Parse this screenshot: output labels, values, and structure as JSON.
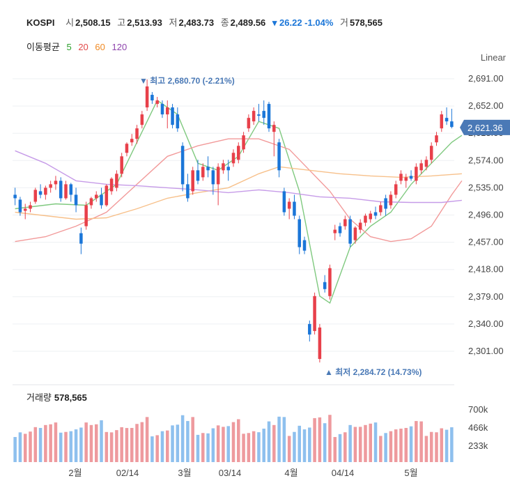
{
  "header": {
    "symbol": "KOSPI",
    "open_label": "시",
    "open": "2,508.15",
    "high_label": "고",
    "high": "2,513.93",
    "low_label": "저",
    "low": "2,483.73",
    "close_label": "종",
    "close": "2,489.56",
    "change": "▾ 26.22 -1.04%",
    "volume_label": "거",
    "volume": "578,565"
  },
  "ma_legend": {
    "label": "이동평균",
    "items": [
      {
        "text": "5",
        "color": "#2ca02c"
      },
      {
        "text": "20",
        "color": "#e24a4a"
      },
      {
        "text": "60",
        "color": "#f08a24"
      },
      {
        "text": "120",
        "color": "#8e44ad"
      }
    ]
  },
  "scale_label": "Linear",
  "current_price": "2,621.36",
  "max_note": "▼ 최고 2,680.70 (-2.21%)",
  "min_note": "▲ 최저 2,284.72 (14.73%)",
  "volume_panel": {
    "label": "거래량",
    "value": "578,565"
  },
  "colors": {
    "up": "#e8404a",
    "down": "#1b76d8",
    "vol_up": "#ee9a9e",
    "vol_down": "#8ec0ee",
    "badge": "#4a79b6"
  },
  "chart_data": {
    "type": "candlestick",
    "y_ticks": [
      "2,691.00",
      "2,652.00",
      "2,613.00",
      "2,574.00",
      "2,535.00",
      "2,496.00",
      "2,457.00",
      "2,418.00",
      "2,379.00",
      "2,340.00",
      "2,301.00"
    ],
    "x_ticks": [
      "2월",
      "02/14",
      "3월",
      "03/14",
      "4월",
      "04/14",
      "5월"
    ],
    "ylim": [
      2301,
      2691
    ],
    "volume_ticks": [
      "700k",
      "466k",
      "233k"
    ],
    "candles": [
      [
        2525,
        2535,
        2510,
        2520
      ],
      [
        2518,
        2522,
        2495,
        2500
      ],
      [
        2502,
        2512,
        2490,
        2505
      ],
      [
        2505,
        2515,
        2500,
        2510
      ],
      [
        2515,
        2535,
        2512,
        2532
      ],
      [
        2530,
        2540,
        2520,
        2525
      ],
      [
        2525,
        2538,
        2518,
        2535
      ],
      [
        2535,
        2545,
        2528,
        2540
      ],
      [
        2540,
        2552,
        2532,
        2545
      ],
      [
        2545,
        2550,
        2515,
        2520
      ],
      [
        2520,
        2545,
        2518,
        2540
      ],
      [
        2540,
        2542,
        2515,
        2525
      ],
      [
        2525,
        2535,
        2500,
        2510
      ],
      [
        2470,
        2478,
        2440,
        2455
      ],
      [
        2480,
        2515,
        2475,
        2510
      ],
      [
        2510,
        2522,
        2505,
        2520
      ],
      [
        2520,
        2530,
        2515,
        2525
      ],
      [
        2525,
        2535,
        2505,
        2510
      ],
      [
        2510,
        2540,
        2508,
        2538
      ],
      [
        2530,
        2550,
        2525,
        2548
      ],
      [
        2535,
        2560,
        2530,
        2555
      ],
      [
        2555,
        2585,
        2550,
        2580
      ],
      [
        2585,
        2600,
        2580,
        2598
      ],
      [
        2600,
        2612,
        2595,
        2605
      ],
      [
        2605,
        2625,
        2598,
        2620
      ],
      [
        2625,
        2645,
        2620,
        2640
      ],
      [
        2650,
        2690,
        2645,
        2680
      ],
      [
        2668,
        2672,
        2655,
        2660
      ],
      [
        2655,
        2665,
        2650,
        2660
      ],
      [
        2655,
        2660,
        2635,
        2640
      ],
      [
        2640,
        2660,
        2620,
        2650
      ],
      [
        2650,
        2655,
        2620,
        2625
      ],
      [
        2640,
        2650,
        2615,
        2620
      ],
      [
        2595,
        2600,
        2530,
        2540
      ],
      [
        2540,
        2555,
        2515,
        2520
      ],
      [
        2530,
        2565,
        2525,
        2560
      ],
      [
        2560,
        2575,
        2540,
        2545
      ],
      [
        2550,
        2570,
        2545,
        2565
      ],
      [
        2565,
        2580,
        2550,
        2560
      ],
      [
        2560,
        2565,
        2525,
        2540
      ],
      [
        2540,
        2570,
        2510,
        2565
      ],
      [
        2560,
        2575,
        2555,
        2570
      ],
      [
        2565,
        2575,
        2545,
        2560
      ],
      [
        2570,
        2590,
        2565,
        2585
      ],
      [
        2575,
        2600,
        2570,
        2595
      ],
      [
        2590,
        2615,
        2585,
        2610
      ],
      [
        2620,
        2640,
        2615,
        2635
      ],
      [
        2630,
        2650,
        2625,
        2645
      ],
      [
        2640,
        2655,
        2630,
        2638
      ],
      [
        2645,
        2660,
        2625,
        2635
      ],
      [
        2655,
        2658,
        2615,
        2620
      ],
      [
        2615,
        2630,
        2580,
        2625
      ],
      [
        2600,
        2605,
        2550,
        2560
      ],
      [
        2530,
        2535,
        2495,
        2500
      ],
      [
        2505,
        2520,
        2490,
        2515
      ],
      [
        2515,
        2525,
        2490,
        2495
      ],
      [
        2490,
        2495,
        2440,
        2450
      ],
      [
        2460,
        2465,
        2440,
        2445
      ],
      [
        2340,
        2345,
        2315,
        2325
      ],
      [
        2330,
        2385,
        2325,
        2380
      ],
      [
        2290,
        2340,
        2285,
        2335
      ],
      [
        2400,
        2410,
        2385,
        2390
      ],
      [
        2380,
        2425,
        2375,
        2420
      ],
      [
        2470,
        2482,
        2460,
        2475
      ],
      [
        2480,
        2485,
        2465,
        2470
      ],
      [
        2480,
        2495,
        2475,
        2490
      ],
      [
        2490,
        2495,
        2450,
        2455
      ],
      [
        2460,
        2480,
        2455,
        2478
      ],
      [
        2475,
        2490,
        2470,
        2485
      ],
      [
        2485,
        2498,
        2480,
        2495
      ],
      [
        2490,
        2502,
        2485,
        2498
      ],
      [
        2500,
        2508,
        2490,
        2495
      ],
      [
        2500,
        2515,
        2495,
        2510
      ],
      [
        2520,
        2525,
        2495,
        2505
      ],
      [
        2510,
        2530,
        2505,
        2525
      ],
      [
        2525,
        2545,
        2520,
        2540
      ],
      [
        2545,
        2560,
        2540,
        2555
      ],
      [
        2545,
        2555,
        2535,
        2550
      ],
      [
        2552,
        2560,
        2545,
        2548
      ],
      [
        2545,
        2570,
        2540,
        2565
      ],
      [
        2560,
        2575,
        2555,
        2570
      ],
      [
        2565,
        2580,
        2560,
        2575
      ],
      [
        2575,
        2600,
        2570,
        2595
      ],
      [
        2600,
        2615,
        2595,
        2610
      ],
      [
        2620,
        2645,
        2615,
        2640
      ],
      [
        2635,
        2650,
        2625,
        2630
      ],
      [
        2630,
        2648,
        2620,
        2622
      ]
    ],
    "ma_series": {
      "ma5": [
        [
          0,
          2505
        ],
        [
          8,
          2512
        ],
        [
          14,
          2510
        ],
        [
          20,
          2540
        ],
        [
          26,
          2630
        ],
        [
          28,
          2660
        ],
        [
          32,
          2640
        ],
        [
          36,
          2570
        ],
        [
          40,
          2560
        ],
        [
          44,
          2580
        ],
        [
          48,
          2630
        ],
        [
          52,
          2620
        ],
        [
          56,
          2530
        ],
        [
          60,
          2380
        ],
        [
          62,
          2370
        ],
        [
          66,
          2450
        ],
        [
          70,
          2480
        ],
        [
          74,
          2500
        ],
        [
          78,
          2540
        ],
        [
          82,
          2570
        ],
        [
          86,
          2600
        ],
        [
          88,
          2610
        ]
      ],
      "ma20": [
        [
          0,
          2458
        ],
        [
          6,
          2465
        ],
        [
          12,
          2480
        ],
        [
          18,
          2500
        ],
        [
          24,
          2540
        ],
        [
          30,
          2580
        ],
        [
          36,
          2595
        ],
        [
          42,
          2605
        ],
        [
          48,
          2605
        ],
        [
          54,
          2590
        ],
        [
          58,
          2560
        ],
        [
          62,
          2530
        ],
        [
          66,
          2490
        ],
        [
          70,
          2465
        ],
        [
          74,
          2458
        ],
        [
          78,
          2462
        ],
        [
          82,
          2480
        ],
        [
          86,
          2525
        ],
        [
          88,
          2545
        ]
      ],
      "ma60": [
        [
          0,
          2500
        ],
        [
          6,
          2495
        ],
        [
          12,
          2490
        ],
        [
          18,
          2492
        ],
        [
          24,
          2505
        ],
        [
          30,
          2520
        ],
        [
          36,
          2528
        ],
        [
          42,
          2535
        ],
        [
          48,
          2555
        ],
        [
          52,
          2565
        ],
        [
          58,
          2560
        ],
        [
          64,
          2555
        ],
        [
          70,
          2552
        ],
        [
          76,
          2550
        ],
        [
          82,
          2552
        ],
        [
          88,
          2555
        ]
      ],
      "ma120": [
        [
          0,
          2588
        ],
        [
          6,
          2570
        ],
        [
          12,
          2545
        ],
        [
          18,
          2540
        ],
        [
          24,
          2538
        ],
        [
          30,
          2535
        ],
        [
          36,
          2532
        ],
        [
          42,
          2528
        ],
        [
          48,
          2532
        ],
        [
          54,
          2528
        ],
        [
          60,
          2522
        ],
        [
          66,
          2520
        ],
        [
          72,
          2515
        ],
        [
          78,
          2514
        ],
        [
          84,
          2514
        ],
        [
          88,
          2517
        ]
      ]
    }
  }
}
